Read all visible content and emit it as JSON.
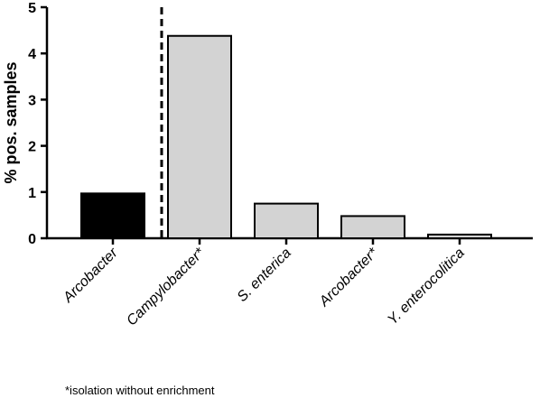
{
  "chart_data": {
    "type": "bar",
    "title": "",
    "xlabel": "",
    "ylabel": "% pos. samples",
    "ylim": [
      0,
      5
    ],
    "yticks": [
      "0",
      "1",
      "2",
      "3",
      "4",
      "5"
    ],
    "categories": [
      "Arcobacter",
      "Campylobacter*",
      "S. enterica",
      "Arcobacter*",
      "Y. enterocolitica"
    ],
    "values": [
      0.97,
      4.38,
      0.75,
      0.48,
      0.08
    ],
    "bar_colors": [
      "#000000",
      "#d3d3d3",
      "#d3d3d3",
      "#d3d3d3",
      "#d3d3d3"
    ],
    "divider": "dashed vertical line between Arcobacter and Campylobacter*",
    "grid": false
  },
  "footnote": "*isolation without enrichment"
}
